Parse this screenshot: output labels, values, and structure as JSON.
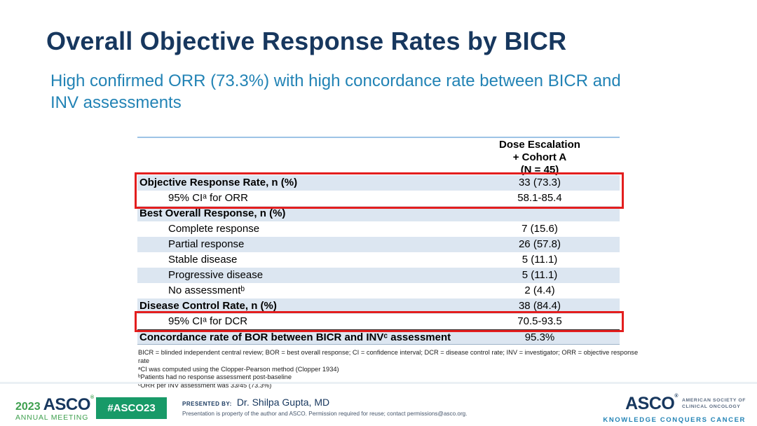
{
  "slide": {
    "title": "Overall Objective Response Rates by BICR",
    "subtitle": "High confirmed ORR (73.3%) with high concordance rate between BICR and\nINV assessments"
  },
  "table": {
    "column_header": "Dose Escalation\n+ Cohort A\n(N = 45)",
    "rows": [
      {
        "label": "Objective Response Rate, n (%)",
        "value": "33 (73.3)"
      },
      {
        "label": "95% CIᵃ for ORR",
        "value": "58.1-85.4"
      },
      {
        "label": "Best Overall Response, n (%)",
        "value": ""
      },
      {
        "label": "Complete response",
        "value": "7 (15.6)"
      },
      {
        "label": "Partial response",
        "value": "26 (57.8)"
      },
      {
        "label": "Stable disease",
        "value": "5 (11.1)"
      },
      {
        "label": "Progressive disease",
        "value": "5 (11.1)"
      },
      {
        "label": "No assessmentᵇ",
        "value": "2 (4.4)"
      },
      {
        "label": "Disease Control Rate, n (%)",
        "value": "38 (84.4)"
      },
      {
        "label": "95% CIᵃ for DCR",
        "value": "70.5-93.5"
      },
      {
        "label": "Concordance rate of BOR between BICR and INVᶜ assessment",
        "value": "95.3%"
      }
    ]
  },
  "footnotes": [
    "BICR = blinded independent central review; BOR = best overall response; CI = confidence interval; DCR = disease control rate; INV = investigator; ORR = objective response rate",
    "ᵃCI was computed using the Clopper-Pearson method (Clopper 1934)",
    "ᵇPatients had no response assessment post-baseline",
    "ᶜORR per INV assessment was 33/45 (73.3%)"
  ],
  "footer": {
    "year": "2023",
    "logo": "ASCO",
    "logo_sub": "ANNUAL MEETING",
    "hashtag": "#ASCO23",
    "presented_by_label": "PRESENTED BY:",
    "presenter": "Dr. Shilpa Gupta, MD",
    "disclaimer": "Presentation is property of the author and ASCO. Permission required for reuse; contact permissions@asco.org.",
    "asco_logo": "ASCO",
    "asco_org_line1": "AMERICAN SOCIETY OF",
    "asco_org_line2": "CLINICAL ONCOLOGY",
    "asco_tagline": "KNOWLEDGE CONQUERS CANCER"
  },
  "colors": {
    "title_navy": "#17375E",
    "subtitle_teal": "#2283B5",
    "row_blue": "#DCE6F1",
    "highlight_red": "#E31E1E",
    "asco_green": "#189A68"
  }
}
